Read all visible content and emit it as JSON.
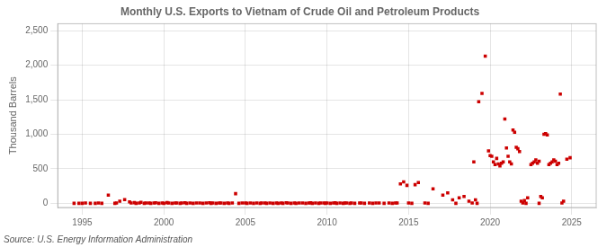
{
  "chart_data": {
    "type": "scatter",
    "title": "Monthly U.S. Exports to Vietnam of Crude Oil and Petroleum Products",
    "ylabel": "Thousand Barrels",
    "annotation": "Source: U.S. Energy Information Administration",
    "marker": "square",
    "grid": true,
    "xlim": [
      1993.5,
      2026.5
    ],
    "xticks": [
      1995,
      2000,
      2005,
      2010,
      2015,
      2020,
      2025
    ],
    "ylim": [
      -60,
      2600
    ],
    "yticks": [
      0,
      500,
      {
        "value": 1000,
        "label": "1,000"
      },
      {
        "value": 1500,
        "label": "1,500"
      },
      {
        "value": 2000,
        "label": "2,000"
      },
      {
        "value": 2500,
        "label": "2,500"
      }
    ],
    "series": [
      {
        "color": "#cc0000",
        "x": [
          1996.6,
          1997.3,
          1997.6,
          1997.9,
          1998.2,
          1998.6,
          1999.1,
          1999.5,
          2000.2,
          2000.7,
          2001.3,
          2002.0,
          2002.8,
          2003.5,
          2004.4,
          2005.0,
          2006.2,
          2007.5,
          2008.3,
          2009.0,
          2009.8,
          2010.5,
          2011.2,
          2012.0,
          2013.0,
          2014.2,
          2014.5,
          2014.7,
          2014.9,
          2015.4,
          2015.6,
          2016.5,
          2017.1,
          2017.4,
          2017.7,
          2018.1,
          2018.4,
          2018.7,
          2019.0,
          2019.1,
          2019.3,
          2019.5,
          2019.7,
          2019.9,
          2020.0,
          2020.1,
          2020.2,
          2020.3,
          2020.4,
          2020.5,
          2020.6,
          2020.7,
          2020.8,
          2020.9,
          2021.0,
          2021.1,
          2021.2,
          2021.3,
          2021.4,
          2021.5,
          2021.6,
          2021.7,
          2021.8,
          2021.9,
          2022.1,
          2022.3,
          2022.5,
          2022.6,
          2022.7,
          2022.8,
          2022.9,
          2023.0,
          2023.1,
          2023.2,
          2023.3,
          2023.4,
          2023.5,
          2023.6,
          2023.7,
          2023.8,
          2023.9,
          2024.0,
          2024.1,
          2024.2,
          2024.3,
          2024.5,
          2024.7,
          2024.9
        ],
        "values": [
          120,
          30,
          55,
          20,
          10,
          15,
          5,
          8,
          10,
          5,
          8,
          5,
          8,
          5,
          140,
          5,
          5,
          8,
          5,
          8,
          5,
          8,
          5,
          5,
          5,
          5,
          280,
          310,
          260,
          270,
          300,
          210,
          120,
          150,
          50,
          80,
          100,
          30,
          600,
          50,
          1470,
          1590,
          2130,
          760,
          690,
          680,
          600,
          560,
          650,
          570,
          540,
          580,
          600,
          1220,
          800,
          680,
          600,
          570,
          1060,
          1030,
          810,
          790,
          750,
          30,
          40,
          80,
          560,
          580,
          600,
          630,
          580,
          610,
          100,
          80,
          1000,
          1010,
          990,
          560,
          580,
          600,
          630,
          610,
          560,
          580,
          1580,
          30,
          640,
          660
        ]
      },
      {
        "color": "#cc0000",
        "x": [
          1994.5,
          1994.8,
          1995.0,
          1995.2,
          1995.5,
          1995.8,
          1996.0,
          1996.2,
          1997.0,
          1997.1,
          1998.0,
          1998.3,
          1998.5,
          1998.8,
          1998.9,
          1999.2,
          1999.4,
          1999.7,
          1999.9,
          2000.0,
          2000.3,
          2000.5,
          2000.8,
          2001.0,
          2001.1,
          2001.4,
          2001.6,
          2001.8,
          2002.2,
          2002.4,
          2002.6,
          2002.9,
          2003.0,
          2003.2,
          2003.4,
          2003.7,
          2003.9,
          2004.0,
          2004.2,
          2004.6,
          2004.8,
          2005.1,
          2005.3,
          2005.5,
          2005.7,
          2005.9,
          2006.0,
          2006.3,
          2006.5,
          2006.7,
          2006.9,
          2007.0,
          2007.2,
          2007.3,
          2007.6,
          2007.8,
          2008.0,
          2008.1,
          2008.5,
          2008.7,
          2008.9,
          2009.1,
          2009.3,
          2009.5,
          2009.6,
          2009.9,
          2010.0,
          2010.2,
          2010.4,
          2010.6,
          2010.8,
          2011.0,
          2011.1,
          2011.4,
          2011.5,
          2011.7,
          2012.1,
          2012.3,
          2012.6,
          2012.8,
          2013.2,
          2013.5,
          2013.8,
          2014.0,
          2014.3,
          2015.0,
          2015.2,
          2016.0,
          2016.2,
          2017.9,
          2018.9,
          2019.2,
          2022.0,
          2022.2,
          2023.0,
          2024.4
        ],
        "values": [
          0,
          0,
          0,
          5,
          0,
          0,
          5,
          0,
          0,
          5,
          5,
          0,
          5,
          0,
          5,
          0,
          5,
          0,
          5,
          0,
          5,
          0,
          5,
          0,
          5,
          0,
          5,
          0,
          5,
          0,
          5,
          0,
          5,
          0,
          5,
          0,
          5,
          0,
          5,
          0,
          5,
          0,
          5,
          0,
          5,
          0,
          5,
          0,
          5,
          0,
          5,
          0,
          5,
          0,
          5,
          0,
          5,
          0,
          5,
          0,
          5,
          0,
          5,
          0,
          5,
          0,
          5,
          0,
          5,
          0,
          5,
          0,
          5,
          0,
          5,
          0,
          5,
          0,
          5,
          0,
          5,
          0,
          5,
          0,
          5,
          5,
          0,
          5,
          0,
          0,
          5,
          0,
          5,
          0,
          0,
          5
        ]
      }
    ]
  }
}
